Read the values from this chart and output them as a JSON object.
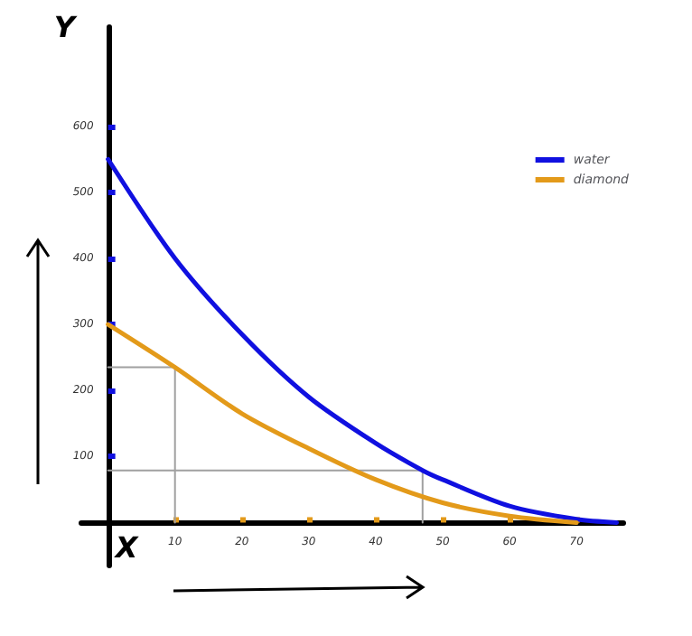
{
  "chart_data": {
    "type": "line",
    "xlabel": "X",
    "ylabel": "Y",
    "xlim": [
      -4,
      77
    ],
    "ylim": [
      -65,
      750
    ],
    "xticks": [
      10,
      20,
      30,
      40,
      50,
      60,
      70
    ],
    "yticks": [
      100,
      200,
      300,
      400,
      500,
      600
    ],
    "grid": false,
    "legend": "top right",
    "marker": "none",
    "line_style": "solid",
    "series": [
      {
        "name": "water",
        "color": "#1010e0",
        "x": [
          0,
          10,
          20,
          30,
          40,
          47,
          50,
          60,
          70,
          76
        ],
        "values": [
          550,
          400,
          285,
          190,
          120,
          79,
          65,
          25,
          5,
          0
        ]
      },
      {
        "name": "diamond",
        "color": "#e39a1a",
        "x": [
          0,
          10,
          20,
          30,
          40,
          50,
          60,
          70
        ],
        "values": [
          300,
          235,
          165,
          112,
          65,
          30,
          10,
          0
        ]
      },
      {
        "color": "#a0a0a0",
        "x": [
          0,
          10,
          10
        ],
        "values": [
          235,
          235,
          0
        ]
      },
      {
        "color": "#a0a0a0",
        "x": [
          0,
          47,
          47
        ],
        "values": [
          79,
          79,
          0
        ]
      }
    ]
  }
}
